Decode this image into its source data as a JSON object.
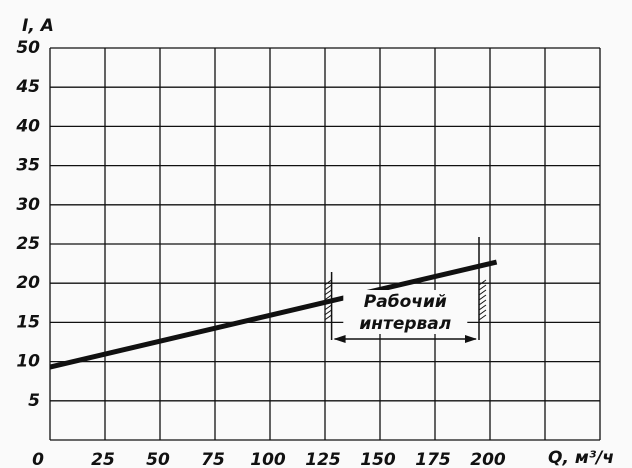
{
  "chart_data": {
    "type": "line",
    "y_label": "I, A",
    "x_label": "Q, м³/ч",
    "series": [
      {
        "color": "#111111",
        "x": [
          0,
          203
        ],
        "values": [
          9.3,
          22.7
        ]
      }
    ],
    "xlim": [
      0,
      250
    ],
    "xticks": [
      0,
      25,
      50,
      75,
      100,
      125,
      150,
      175,
      200
    ],
    "ylim": [
      0,
      50
    ],
    "yticks": [
      5,
      10,
      15,
      20,
      25,
      30,
      35,
      40,
      45,
      50
    ],
    "grid": true,
    "interval": {
      "label_lines": [
        "Рабочий",
        "интервал"
      ],
      "from": 128,
      "to": 195
    }
  }
}
